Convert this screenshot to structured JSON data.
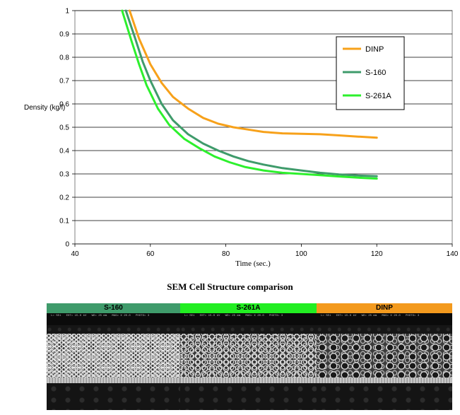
{
  "chart_data": {
    "type": "line",
    "title": "",
    "xlabel": "Time (sec.)",
    "ylabel": "Density (kg/l)",
    "xlim": [
      40,
      140
    ],
    "ylim": [
      0,
      1
    ],
    "xticks": [
      "40",
      "60",
      "80",
      "100",
      "120",
      "140"
    ],
    "yticks": [
      "0",
      "0.1",
      "0.2",
      "0.3",
      "0.4",
      "0.5",
      "0.6",
      "0.7",
      "0.8",
      "0.9",
      "1"
    ],
    "grid": true,
    "legend_position": "top-right",
    "series": [
      {
        "name": "DINP",
        "color": "#F7A11A",
        "points": [
          [
            54.5,
            1.0
          ],
          [
            57,
            0.88
          ],
          [
            60,
            0.77
          ],
          [
            63,
            0.69
          ],
          [
            66,
            0.63
          ],
          [
            70,
            0.58
          ],
          [
            74,
            0.54
          ],
          [
            78,
            0.515
          ],
          [
            82,
            0.5
          ],
          [
            86,
            0.49
          ],
          [
            90,
            0.48
          ],
          [
            95,
            0.474
          ],
          [
            100,
            0.472
          ],
          [
            105,
            0.47
          ],
          [
            110,
            0.465
          ],
          [
            115,
            0.46
          ],
          [
            120,
            0.455
          ]
        ]
      },
      {
        "name": "S-160",
        "color": "#3F9B6B",
        "points": [
          [
            53.5,
            1.0
          ],
          [
            56,
            0.88
          ],
          [
            58,
            0.78
          ],
          [
            60,
            0.7
          ],
          [
            63,
            0.6
          ],
          [
            66,
            0.53
          ],
          [
            70,
            0.47
          ],
          [
            74,
            0.43
          ],
          [
            78,
            0.4
          ],
          [
            82,
            0.375
          ],
          [
            86,
            0.355
          ],
          [
            90,
            0.34
          ],
          [
            95,
            0.325
          ],
          [
            100,
            0.315
          ],
          [
            105,
            0.305
          ],
          [
            110,
            0.298
          ],
          [
            115,
            0.293
          ],
          [
            120,
            0.29
          ]
        ]
      },
      {
        "name": "S-261A",
        "color": "#2DF02D",
        "points": [
          [
            52.5,
            1.0
          ],
          [
            55,
            0.87
          ],
          [
            57,
            0.77
          ],
          [
            59,
            0.68
          ],
          [
            62,
            0.58
          ],
          [
            65,
            0.51
          ],
          [
            69,
            0.45
          ],
          [
            73,
            0.41
          ],
          [
            77,
            0.375
          ],
          [
            81,
            0.35
          ],
          [
            85,
            0.33
          ],
          [
            90,
            0.315
          ],
          [
            95,
            0.305
          ],
          [
            100,
            0.3
          ],
          [
            105,
            0.295
          ],
          [
            110,
            0.289
          ],
          [
            115,
            0.284
          ],
          [
            120,
            0.28
          ]
        ]
      }
    ]
  },
  "sem": {
    "title": "SEM Cell Structure comparison",
    "panels": [
      {
        "label": "S-160",
        "color": "#3F9B6B"
      },
      {
        "label": "S-261A",
        "color": "#22EE22"
      },
      {
        "label": "DINP",
        "color": "#F39A1E"
      }
    ]
  }
}
